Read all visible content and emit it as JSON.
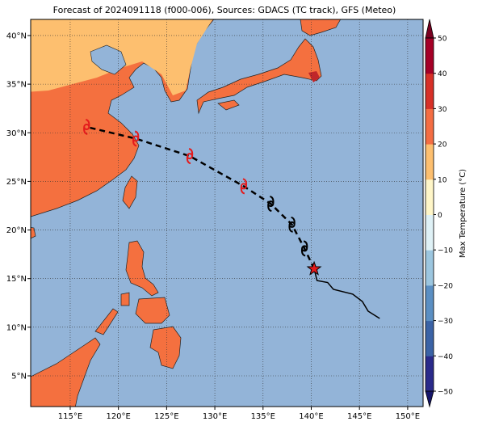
{
  "map": {
    "title": "Forecast of 2024091118 (f000-006), Sources: GDACS (TC track), GFS (Meteo)",
    "xlim": [
      110.9,
      151.6
    ],
    "ylim": [
      1.84,
      41.66
    ],
    "xticks": [
      {
        "value": 115,
        "label": "115°E"
      },
      {
        "value": 120,
        "label": "120°E"
      },
      {
        "value": 125,
        "label": "125°E"
      },
      {
        "value": 130,
        "label": "130°E"
      },
      {
        "value": 135,
        "label": "135°E"
      },
      {
        "value": 140,
        "label": "140°E"
      },
      {
        "value": 145,
        "label": "145°E"
      },
      {
        "value": 150,
        "label": "150°E"
      }
    ],
    "yticks": [
      {
        "value": 5,
        "label": "5°N"
      },
      {
        "value": 10,
        "label": "10°N"
      },
      {
        "value": 15,
        "label": "15°N"
      },
      {
        "value": 20,
        "label": "20°N"
      },
      {
        "value": 25,
        "label": "25°N"
      },
      {
        "value": 30,
        "label": "30°N"
      },
      {
        "value": 35,
        "label": "35°N"
      },
      {
        "value": 40,
        "label": "40°N"
      }
    ],
    "grid": true,
    "forecast_track": {
      "lon": [
        140.3,
        139.3,
        138.0,
        135.8,
        133.0,
        127.4,
        121.8,
        116.7
      ],
      "lat": [
        16.0,
        18.1,
        20.55,
        22.7,
        24.5,
        27.6,
        29.4,
        30.6
      ],
      "symbol_colors": [
        "#e41a1c",
        "#000000",
        "#000000",
        "#000000",
        "#e41a1c",
        "#e41a1c",
        "#e41a1c",
        "#e41a1c"
      ]
    },
    "past_track": {
      "lon": [
        140.3,
        140.6,
        141.7,
        142.3,
        144.3,
        145.3,
        145.9,
        147.1
      ],
      "lat": [
        16.0,
        14.8,
        14.6,
        13.9,
        13.4,
        12.65,
        11.65,
        10.9
      ]
    },
    "colorbar": {
      "label": "Max Temperature (°C)",
      "lim": [
        -50,
        50
      ],
      "ticks": [
        {
          "value": -50,
          "label": "−50"
        },
        {
          "value": -40,
          "label": "−40"
        },
        {
          "value": -30,
          "label": "−30"
        },
        {
          "value": -20,
          "label": "−20"
        },
        {
          "value": -10,
          "label": "−10"
        },
        0,
        10,
        20,
        30,
        40,
        50
      ],
      "colors": [
        "#2a2a8a",
        "#3b63a6",
        "#5b8fc3",
        "#9cc6df",
        "#dff1f6",
        "#fff6c8",
        "#fdbf6f",
        "#f46d43",
        "#d73027",
        "#a50026"
      ],
      "under_color": "#16166a",
      "over_color": "#7a0020"
    }
  }
}
